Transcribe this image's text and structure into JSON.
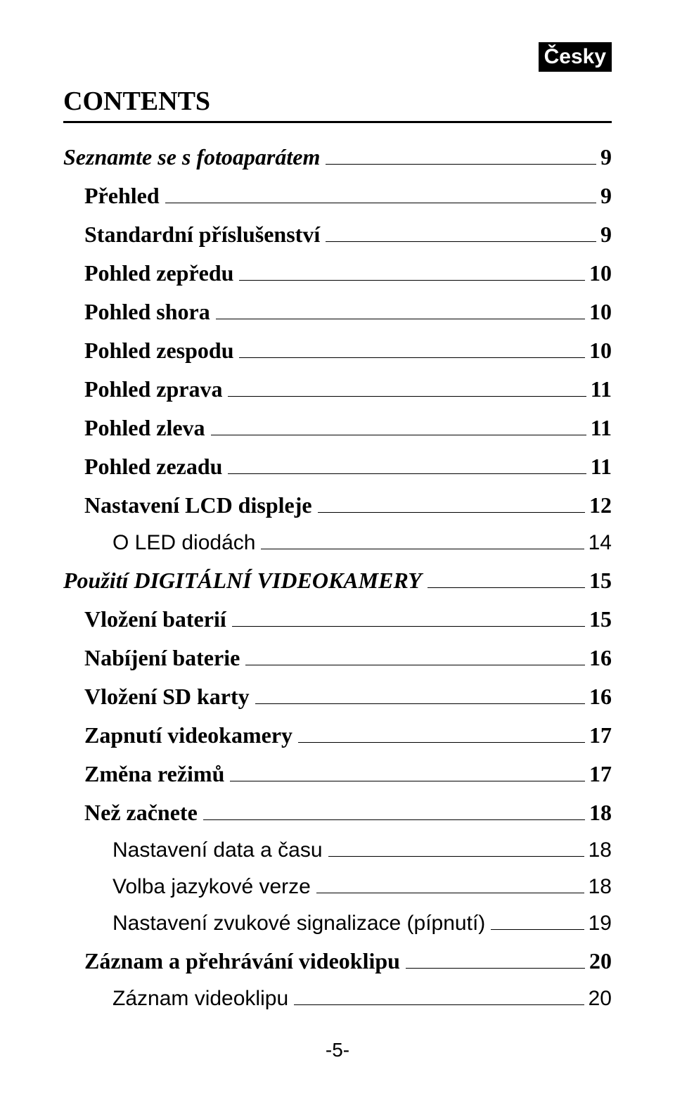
{
  "lang_badge": "Česky",
  "heading": "CONTENTS",
  "entries": [
    {
      "label": "Seznamte se s fotoaparátem",
      "page": "9",
      "indent": 0,
      "italic": true,
      "sub": false
    },
    {
      "label": "Přehled",
      "page": "9",
      "indent": 1,
      "italic": false,
      "sub": false
    },
    {
      "label": "Standardní příslušenství",
      "page": "9",
      "indent": 1,
      "italic": false,
      "sub": false
    },
    {
      "label": "Pohled zepředu",
      "page": "10",
      "indent": 1,
      "italic": false,
      "sub": false
    },
    {
      "label": "Pohled shora",
      "page": "10",
      "indent": 1,
      "italic": false,
      "sub": false
    },
    {
      "label": "Pohled zespodu",
      "page": "10",
      "indent": 1,
      "italic": false,
      "sub": false
    },
    {
      "label": "Pohled zprava",
      "page": "11",
      "indent": 1,
      "italic": false,
      "sub": false
    },
    {
      "label": "Pohled zleva",
      "page": "11",
      "indent": 1,
      "italic": false,
      "sub": false
    },
    {
      "label": "Pohled zezadu",
      "page": "11",
      "indent": 1,
      "italic": false,
      "sub": false
    },
    {
      "label": "Nastavení LCD displeje",
      "page": "12",
      "indent": 1,
      "italic": false,
      "sub": false
    },
    {
      "label": "O LED diodách",
      "page": "14",
      "indent": 2,
      "italic": false,
      "sub": true
    },
    {
      "label": "Použití DIGITÁLNÍ VIDEOKAMERY",
      "page": "15",
      "indent": 0,
      "italic": true,
      "sub": false
    },
    {
      "label": "Vložení baterií",
      "page": "15",
      "indent": 1,
      "italic": false,
      "sub": false
    },
    {
      "label": "Nabíjení baterie",
      "page": "16",
      "indent": 1,
      "italic": false,
      "sub": false
    },
    {
      "label": "Vložení SD karty",
      "page": "16",
      "indent": 1,
      "italic": false,
      "sub": false
    },
    {
      "label": "Zapnutí videokamery",
      "page": "17",
      "indent": 1,
      "italic": false,
      "sub": false
    },
    {
      "label": "Změna režimů",
      "page": "17",
      "indent": 1,
      "italic": false,
      "sub": false
    },
    {
      "label": "Než začnete",
      "page": "18",
      "indent": 1,
      "italic": false,
      "sub": false
    },
    {
      "label": "Nastavení data a času",
      "page": "18",
      "indent": 2,
      "italic": false,
      "sub": true
    },
    {
      "label": "Volba jazykové verze",
      "page": "18",
      "indent": 2,
      "italic": false,
      "sub": true
    },
    {
      "label": "Nastavení zvukové signalizace (pípnutí)",
      "page": "19",
      "indent": 2,
      "italic": false,
      "sub": true
    },
    {
      "label": "Záznam a přehrávání videoklipu",
      "page": "20",
      "indent": 1,
      "italic": false,
      "sub": false
    },
    {
      "label": "Záznam videoklipu",
      "page": "20",
      "indent": 2,
      "italic": false,
      "sub": true
    }
  ],
  "footer": "-5-",
  "typography": {
    "heading_fontsize_pt": 28,
    "entry_fontsize_pt": 24,
    "sub_fontsize_pt": 22,
    "footer_fontsize_pt": 21,
    "lang_badge_fontsize_pt": 22,
    "font_family_serif": "Times New Roman",
    "font_family_sans": "Arial"
  },
  "colors": {
    "text": "#000000",
    "background": "#ffffff",
    "badge_bg": "#000000",
    "badge_fg": "#ffffff",
    "rule": "#000000"
  }
}
